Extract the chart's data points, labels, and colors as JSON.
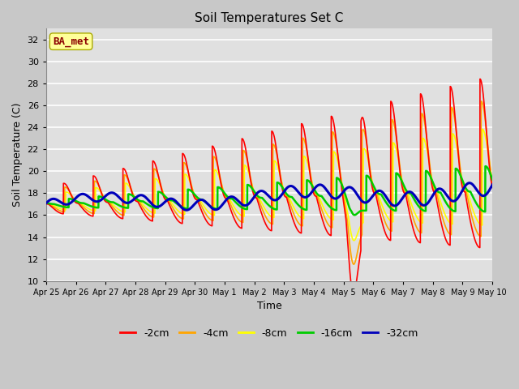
{
  "title": "Soil Temperatures Set C",
  "xlabel": "Time",
  "ylabel": "Soil Temperature (C)",
  "ylim": [
    10,
    33
  ],
  "yticks": [
    10,
    12,
    14,
    16,
    18,
    20,
    22,
    24,
    26,
    28,
    30,
    32
  ],
  "annotation": "BA_met",
  "annotation_color": "#8B0000",
  "annotation_bg": "#FFFF99",
  "fig_bg": "#C8C8C8",
  "plot_bg": "#E0E0E0",
  "colors": {
    "-2cm": "#FF0000",
    "-4cm": "#FFA500",
    "-8cm": "#FFFF00",
    "-16cm": "#00CC00",
    "-32cm": "#0000BB"
  },
  "line_widths": {
    "-2cm": 1.2,
    "-4cm": 1.2,
    "-8cm": 1.2,
    "-16cm": 1.8,
    "-32cm": 2.2
  },
  "x_tick_labels": [
    "Apr 25",
    "Apr 26",
    "Apr 27",
    "Apr 28",
    "Apr 29",
    "Apr 30",
    "May 1",
    "May 2",
    "May 3",
    "May 4",
    "May 5",
    "May 6",
    "May 7",
    "May 8",
    "May 9",
    "May 10"
  ],
  "days": 15,
  "figsize": [
    6.4,
    4.8
  ],
  "dpi": 100
}
